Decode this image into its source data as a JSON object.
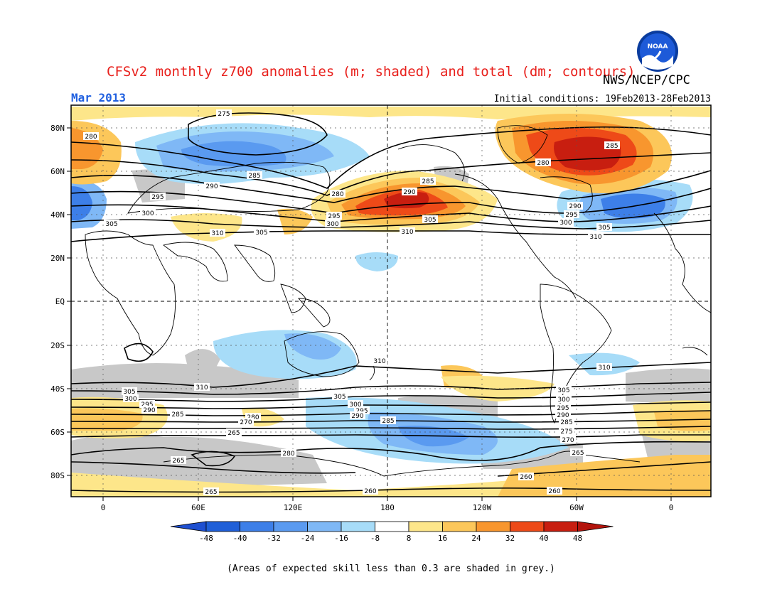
{
  "header": {
    "title": "CFSv2 monthly z700 anomalies (m; shaded) and total (dm; contours)",
    "agency": "NWS/NCEP/CPC",
    "month": "Mar 2013",
    "initial_conditions": "Initial conditions: 19Feb2013-28Feb2013"
  },
  "footnote": "(Areas of expected skill less than 0.3 are shaded in grey.)",
  "logo": {
    "icon": "noaa-logo-icon",
    "text": "NOAA"
  },
  "axes": {
    "lat_ticks": [
      "80N",
      "60N",
      "40N",
      "20N",
      "EQ",
      "20S",
      "40S",
      "60S",
      "80S"
    ],
    "lon_ticks": [
      "0",
      "60E",
      "120E",
      "180",
      "120W",
      "60W",
      "0"
    ]
  },
  "colorbar": {
    "labels": [
      "-48",
      "-40",
      "-32",
      "-24",
      "-16",
      "-8",
      "8",
      "16",
      "24",
      "32",
      "40",
      "48"
    ],
    "colors": [
      "#1f5fd8",
      "#3d7fe8",
      "#5a9af0",
      "#7fb8f6",
      "#a7dcf8",
      "#ffffff",
      "#fde68a",
      "#fcc75a",
      "#f8962e",
      "#ee4a18",
      "#c81e10"
    ],
    "low_arrow_color": "#1e4fd0",
    "high_arrow_color": "#b3140c"
  },
  "contour_labels": [
    "275",
    "280",
    "285",
    "290",
    "295",
    "300",
    "305",
    "310",
    "265",
    "260",
    "270"
  ],
  "colors": {
    "title": "#e8201c",
    "month": "#2060e0",
    "skill_grey": "#c8c8c8"
  }
}
